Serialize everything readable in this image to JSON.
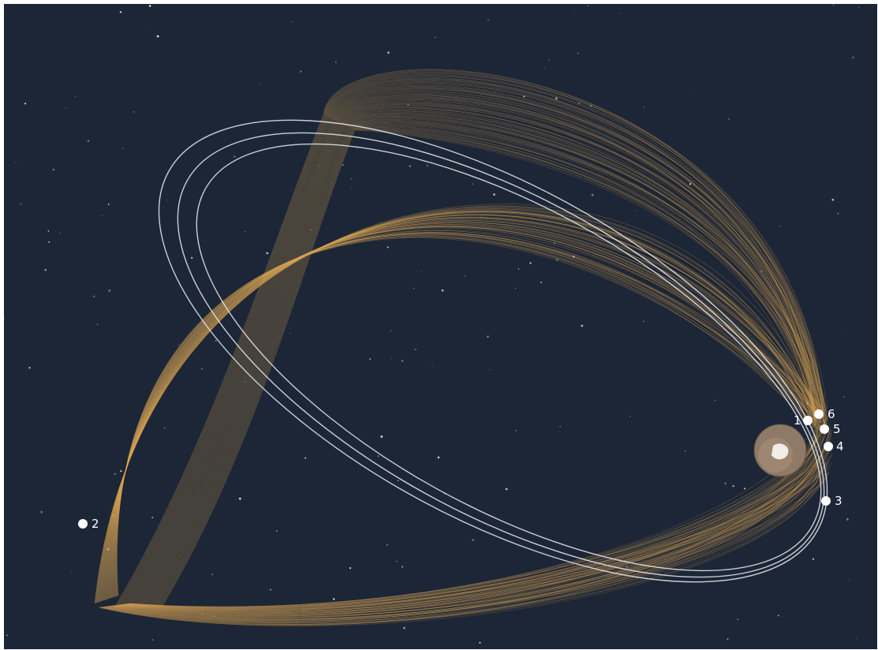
{
  "scene": {
    "background_color": "#1d2636",
    "orbit_bundle_color": "#d9a655",
    "reference_orbit_color": "#e9edf2",
    "planet": {
      "name_icon": "planet-globe-icon",
      "color": "#8f7a67",
      "cap_color": "#f2ece6"
    },
    "waypoints": [
      {
        "label": "1"
      },
      {
        "label": "2"
      },
      {
        "label": "3"
      },
      {
        "label": "4"
      },
      {
        "label": "5"
      },
      {
        "label": "6"
      }
    ]
  }
}
